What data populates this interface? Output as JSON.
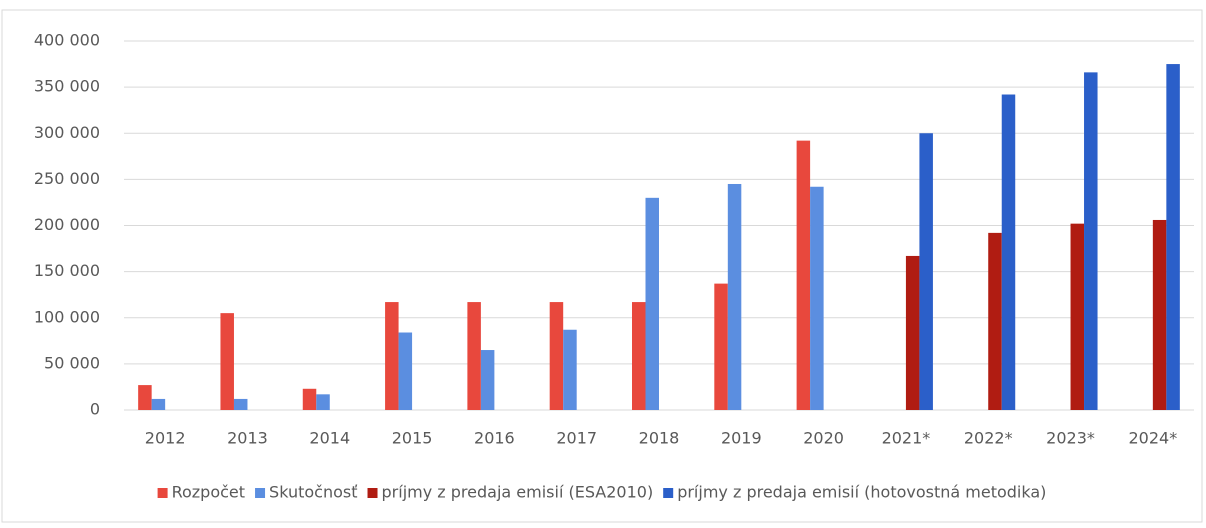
{
  "chart_data": {
    "type": "bar",
    "categories": [
      "2012",
      "2013",
      "2014",
      "2015",
      "2016",
      "2017",
      "2018",
      "2019",
      "2020",
      "2021*",
      "2022*",
      "2023*",
      "2024*"
    ],
    "series": [
      {
        "name": "Rozpočet",
        "color": "#e8483d",
        "values": [
          27000,
          105000,
          23000,
          117000,
          117000,
          117000,
          117000,
          137000,
          292000,
          null,
          null,
          null,
          null
        ]
      },
      {
        "name": "Skutočnosť",
        "color": "#5b8ee0",
        "values": [
          12000,
          12000,
          17000,
          84000,
          65000,
          87000,
          230000,
          245000,
          242000,
          null,
          null,
          null,
          null
        ]
      },
      {
        "name": "príjmy z predaja emisií (ESA2010)",
        "color": "#b01c12",
        "values": [
          null,
          null,
          null,
          null,
          null,
          null,
          null,
          null,
          null,
          167000,
          192000,
          202000,
          206000
        ]
      },
      {
        "name": "príjmy z predaja emisií (hotovostná metodika)",
        "color": "#2b5fc9",
        "values": [
          null,
          null,
          null,
          null,
          null,
          null,
          null,
          null,
          null,
          300000,
          342000,
          366000,
          375000
        ]
      }
    ],
    "ylim": [
      0,
      400000
    ],
    "yticks": [
      0,
      {
        "value": 50000,
        "label": "50 000"
      },
      {
        "value": 100000,
        "label": "100 000"
      },
      {
        "value": 150000,
        "label": "150 000"
      },
      {
        "value": 200000,
        "label": "200 000"
      },
      {
        "value": 250000,
        "label": "250 000"
      },
      {
        "value": 300000,
        "label": "300 000"
      },
      {
        "value": 350000,
        "label": "350 000"
      },
      {
        "value": 400000,
        "label": "400 000"
      }
    ],
    "grid": true,
    "legend": "bottom"
  }
}
